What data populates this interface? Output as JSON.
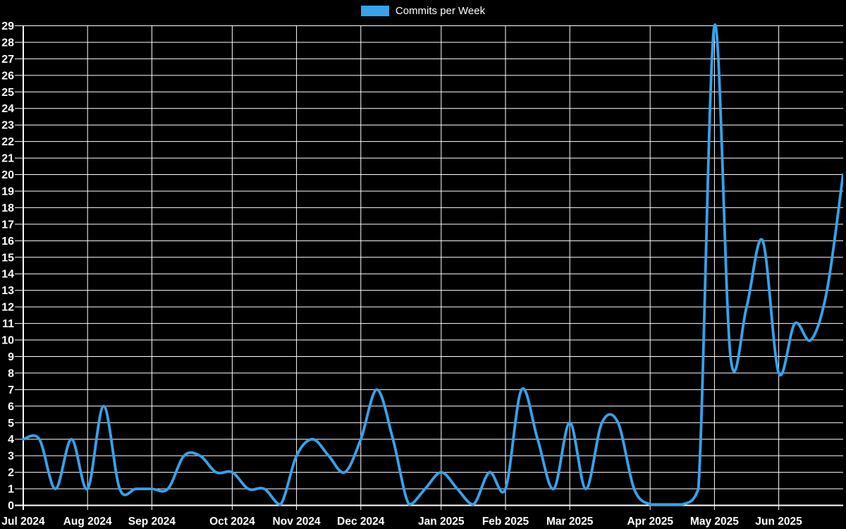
{
  "chart_data": {
    "type": "line",
    "title": "",
    "legend": {
      "label": "Commits per Week",
      "position": "top",
      "swatch_color": "#36a2eb"
    },
    "colors": {
      "background": "#000000",
      "grid": "#ffffff",
      "text": "#ffffff",
      "line": "#36a2eb"
    },
    "x_unit": "week",
    "x_description": "weekly points, Jul 2024 through Jun 2025",
    "x_tick_labels": [
      "Jul 2024",
      "Aug 2024",
      "Sep 2024",
      "Oct 2024",
      "Nov 2024",
      "Dec 2024",
      "Jan 2025",
      "Feb 2025",
      "Mar 2025",
      "Apr 2025",
      "May 2025",
      "Jun 2025"
    ],
    "x_tick_week_indices": [
      0,
      4,
      8,
      13,
      17,
      21,
      26,
      30,
      34,
      39,
      43,
      47
    ],
    "y_tick_labels": [
      0,
      1,
      2,
      3,
      4,
      5,
      6,
      7,
      8,
      9,
      10,
      11,
      12,
      13,
      14,
      15,
      16,
      17,
      18,
      19,
      20,
      21,
      22,
      23,
      24,
      25,
      26,
      27,
      28,
      29
    ],
    "ylim": [
      0,
      29
    ],
    "grid": true,
    "series": [
      {
        "name": "Commits per Week",
        "values": [
          4,
          4,
          1,
          4,
          1,
          6,
          1,
          1,
          1,
          1,
          3,
          3,
          2,
          2,
          1,
          1,
          0,
          3,
          4,
          3,
          2,
          4,
          7,
          4,
          0,
          1,
          2,
          1,
          0,
          2,
          1,
          7,
          4,
          1,
          5,
          1,
          5,
          5,
          1,
          0,
          0,
          0,
          1,
          29,
          9,
          12,
          16,
          8,
          11,
          10,
          13,
          20
        ]
      }
    ]
  }
}
